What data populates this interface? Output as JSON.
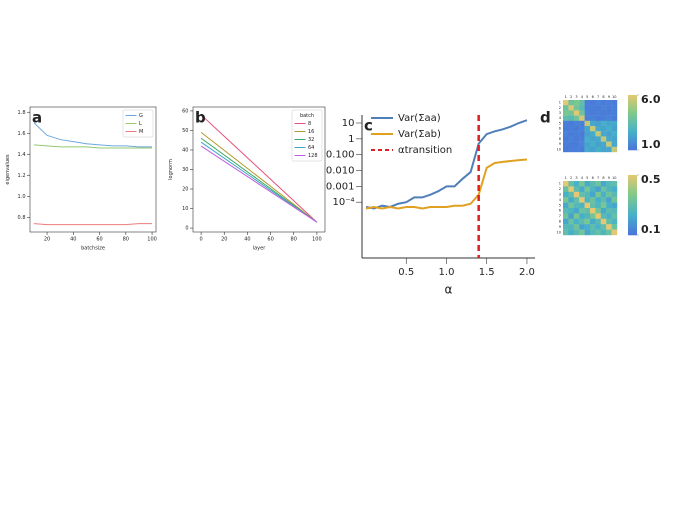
{
  "chart_data": [
    {
      "type": "line",
      "panel": "a",
      "xlabel": "batchsize",
      "ylabel": "eigenvalues",
      "x": [
        10,
        20,
        30,
        40,
        50,
        60,
        70,
        80,
        90,
        100
      ],
      "series": [
        {
          "name": "G",
          "color": "#6fa8dc",
          "values": [
            1.7,
            1.58,
            1.54,
            1.52,
            1.5,
            1.49,
            1.48,
            1.48,
            1.47,
            1.47
          ]
        },
        {
          "name": "L",
          "color": "#93c96f",
          "values": [
            1.49,
            1.48,
            1.47,
            1.47,
            1.47,
            1.46,
            1.46,
            1.46,
            1.46,
            1.46
          ]
        },
        {
          "name": "M",
          "color": "#ec7b7b",
          "values": [
            0.74,
            0.73,
            0.73,
            0.73,
            0.73,
            0.73,
            0.73,
            0.73,
            0.74,
            0.74
          ]
        }
      ],
      "xlim": [
        7,
        103
      ],
      "xticks": [
        20,
        40,
        60,
        80,
        100
      ],
      "ylim": [
        0.66,
        1.85
      ],
      "yticks": [
        0.8,
        {
          "value": 1,
          "label": "1.0"
        },
        1.2,
        1.4,
        1.6,
        1.8
      ],
      "legend": "upper right"
    },
    {
      "type": "line",
      "panel": "b",
      "xlabel": "layer",
      "ylabel": "lognorm",
      "legend_title": "batch",
      "x": [
        0,
        50,
        100
      ],
      "series": [
        {
          "name": "8",
          "color": "#e8507a",
          "values": [
            58,
            30.5,
            3
          ]
        },
        {
          "name": "16",
          "color": "#b59a30",
          "values": [
            49,
            26,
            3
          ]
        },
        {
          "name": "32",
          "color": "#3aa860",
          "values": [
            46,
            24.5,
            3
          ]
        },
        {
          "name": "64",
          "color": "#39a8c8",
          "values": [
            44,
            23.5,
            3
          ]
        },
        {
          "name": "128",
          "color": "#c060e0",
          "values": [
            42,
            22.5,
            3
          ]
        }
      ],
      "xlim": [
        -7,
        107
      ],
      "xticks": [
        0,
        20,
        40,
        60,
        80,
        100
      ],
      "ylim": [
        -2,
        62
      ],
      "yticks": [
        0,
        10,
        20,
        30,
        40,
        50,
        60
      ],
      "legend": "upper right"
    },
    {
      "type": "line",
      "panel": "c",
      "xlabel": "α",
      "log_y": true,
      "x": [
        0,
        0.1,
        0.2,
        0.3,
        0.4,
        0.5,
        0.6,
        0.7,
        0.8,
        0.9,
        1.0,
        1.1,
        1.2,
        1.3,
        1.4,
        1.5,
        1.6,
        1.7,
        1.8,
        1.9,
        2.0
      ],
      "series": [
        {
          "name": "Var(Σaa)",
          "color": "#4f7fb8",
          "values": [
            5e-05,
            4e-05,
            6e-05,
            5e-05,
            8e-05,
            0.0001,
            0.0002,
            0.0002,
            0.0003,
            0.0005,
            0.001,
            0.001,
            0.003,
            0.008,
            0.5,
            2,
            3,
            4,
            6,
            10,
            15
          ]
        },
        {
          "name": "Var(Σab)",
          "color": "#e0a020",
          "values": [
            4e-05,
            5e-05,
            4e-05,
            5e-05,
            4e-05,
            5e-05,
            5e-05,
            4e-05,
            5e-05,
            5e-05,
            5e-05,
            6e-05,
            6e-05,
            8e-05,
            0.0003,
            0.015,
            0.03,
            0.035,
            0.04,
            0.045,
            0.05
          ]
        }
      ],
      "vline": {
        "value": 1.4,
        "name": "αtransition",
        "color": "#e02020"
      },
      "xlim": [
        -0.05,
        2.1
      ],
      "xticks": [
        0.5,
        {
          "value": 1,
          "label": "1.0"
        },
        1.5,
        {
          "value": 2,
          "label": "2.0"
        }
      ],
      "ylim": [
        3e-08,
        32
      ],
      "yticks": [
        {
          "value": 0.0001,
          "label": "10⁻⁴"
        },
        0.001,
        {
          "value": 0.01,
          "label": "0.010"
        },
        {
          "value": 0.1,
          "label": "0.100"
        },
        1,
        10
      ],
      "legend": "upper left"
    },
    {
      "type": "heatmap",
      "panel": "d",
      "x": [
        1,
        2,
        3,
        4,
        5,
        6,
        7,
        8,
        9,
        10
      ],
      "y": [
        1,
        2,
        3,
        4,
        5,
        6,
        7,
        8,
        9,
        10
      ],
      "values": [
        [
          6.0,
          3.8,
          4.2,
          3.5,
          1.3,
          1.2,
          1.4,
          1.2,
          1.3,
          1.2
        ],
        [
          3.8,
          5.8,
          4.0,
          3.2,
          1.2,
          1.3,
          1.2,
          1.4,
          1.2,
          1.3
        ],
        [
          4.2,
          4.0,
          5.9,
          3.9,
          1.4,
          1.2,
          1.3,
          1.2,
          1.2,
          1.3
        ],
        [
          3.5,
          3.2,
          3.9,
          5.7,
          1.3,
          1.4,
          1.2,
          1.3,
          1.4,
          1.2
        ],
        [
          1.3,
          1.2,
          1.4,
          1.3,
          5.5,
          2.4,
          2.2,
          2.6,
          2.3,
          2.5
        ],
        [
          1.2,
          1.3,
          1.2,
          1.4,
          2.4,
          5.6,
          2.5,
          2.3,
          2.6,
          2.2
        ],
        [
          1.4,
          1.2,
          1.3,
          1.2,
          2.2,
          2.5,
          5.4,
          2.4,
          2.2,
          2.6
        ],
        [
          1.2,
          1.4,
          1.2,
          1.3,
          2.6,
          2.3,
          2.4,
          5.5,
          2.5,
          2.3
        ],
        [
          1.3,
          1.2,
          1.2,
          1.4,
          2.3,
          2.6,
          2.2,
          2.5,
          5.6,
          2.4
        ],
        [
          1.2,
          1.3,
          1.3,
          1.2,
          2.5,
          2.2,
          2.6,
          2.3,
          2.4,
          5.5
        ]
      ],
      "zlim": [
        1,
        6
      ],
      "zticks": [
        {
          "value": 6,
          "label": "6.0"
        },
        {
          "value": 1,
          "label": "1.0"
        }
      ],
      "colormap": [
        "#4a74db",
        "#46b1c9",
        "#7fc98a",
        "#e4c872"
      ]
    },
    {
      "type": "heatmap",
      "x": [
        1,
        2,
        3,
        4,
        5,
        6,
        7,
        8,
        9,
        10
      ],
      "y": [
        1,
        2,
        3,
        4,
        5,
        6,
        7,
        8,
        9,
        10
      ],
      "values": [
        [
          0.5,
          0.31,
          0.24,
          0.35,
          0.22,
          0.28,
          0.33,
          0.21,
          0.27,
          0.3
        ],
        [
          0.31,
          0.5,
          0.29,
          0.22,
          0.34,
          0.25,
          0.2,
          0.32,
          0.26,
          0.23
        ],
        [
          0.24,
          0.29,
          0.5,
          0.3,
          0.27,
          0.21,
          0.35,
          0.24,
          0.33,
          0.28
        ],
        [
          0.35,
          0.22,
          0.3,
          0.5,
          0.25,
          0.32,
          0.23,
          0.29,
          0.2,
          0.34
        ],
        [
          0.22,
          0.34,
          0.27,
          0.25,
          0.5,
          0.3,
          0.26,
          0.35,
          0.23,
          0.21
        ],
        [
          0.28,
          0.25,
          0.21,
          0.32,
          0.3,
          0.5,
          0.34,
          0.22,
          0.29,
          0.27
        ],
        [
          0.33,
          0.2,
          0.35,
          0.23,
          0.26,
          0.34,
          0.5,
          0.28,
          0.24,
          0.31
        ],
        [
          0.21,
          0.32,
          0.24,
          0.29,
          0.35,
          0.22,
          0.28,
          0.5,
          0.3,
          0.25
        ],
        [
          0.27,
          0.26,
          0.33,
          0.2,
          0.23,
          0.29,
          0.24,
          0.3,
          0.5,
          0.32
        ],
        [
          0.3,
          0.23,
          0.28,
          0.34,
          0.21,
          0.27,
          0.31,
          0.25,
          0.32,
          0.5
        ]
      ],
      "zlim": [
        0.1,
        0.5
      ],
      "zticks": [
        {
          "value": 0.5,
          "label": "0.5"
        },
        {
          "value": 0.1,
          "label": "0.1"
        }
      ],
      "colormap": [
        "#4a74db",
        "#46b1c9",
        "#7fc98a",
        "#e4c872"
      ]
    }
  ]
}
